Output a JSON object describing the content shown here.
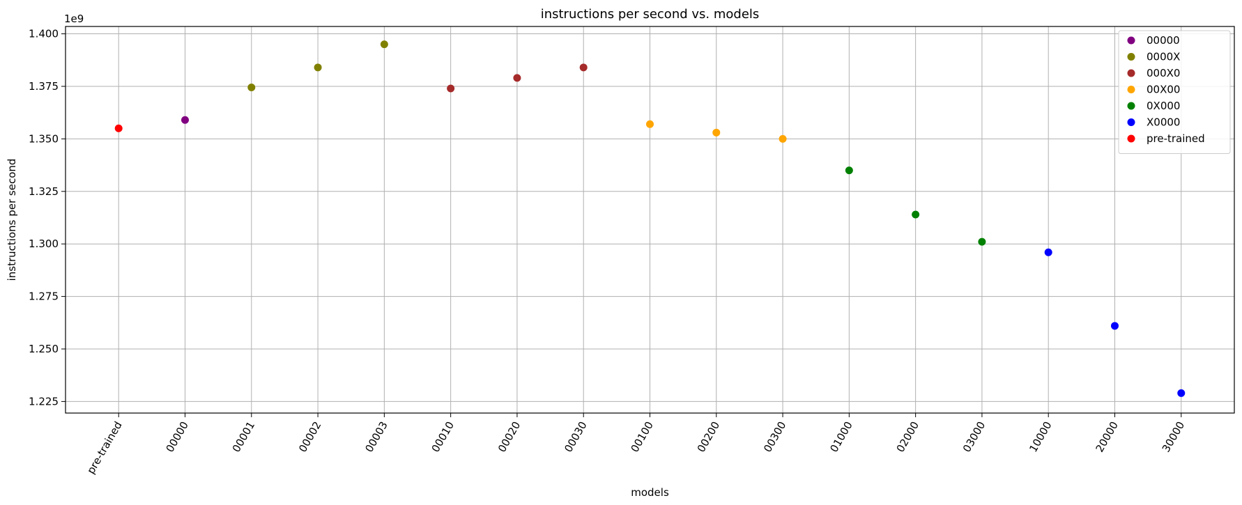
{
  "chart_data": {
    "type": "scatter",
    "title": "instructions per second vs. models",
    "xlabel": "models",
    "ylabel": "instructions per second",
    "y_offset_label": "1e9",
    "categories": [
      "pre-trained",
      "00000",
      "00001",
      "00002",
      "00003",
      "00010",
      "00020",
      "00030",
      "00100",
      "00200",
      "00300",
      "01000",
      "02000",
      "03000",
      "10000",
      "20000",
      "30000"
    ],
    "ylim": [
      1.2195,
      1.4035
    ],
    "yticks": [
      1.225,
      1.25,
      1.275,
      1.3,
      1.325,
      1.35,
      1.375,
      1.4
    ],
    "ytick_labels": [
      "1.225",
      "1.250",
      "1.275",
      "1.300",
      "1.325",
      "1.350",
      "1.375",
      "1.400"
    ],
    "grid": true,
    "legend_position": "top-right",
    "series": [
      {
        "name": "00000",
        "color": "#800080",
        "points": [
          {
            "x": "00000",
            "y": 1.359
          }
        ]
      },
      {
        "name": "0000X",
        "color": "#808000",
        "points": [
          {
            "x": "00001",
            "y": 1.3745
          },
          {
            "x": "00002",
            "y": 1.384
          },
          {
            "x": "00003",
            "y": 1.395
          }
        ]
      },
      {
        "name": "000X0",
        "color": "#a52a2a",
        "points": [
          {
            "x": "00010",
            "y": 1.374
          },
          {
            "x": "00020",
            "y": 1.379
          },
          {
            "x": "00030",
            "y": 1.384
          }
        ]
      },
      {
        "name": "00X00",
        "color": "#ffa500",
        "points": [
          {
            "x": "00100",
            "y": 1.357
          },
          {
            "x": "00200",
            "y": 1.353
          },
          {
            "x": "00300",
            "y": 1.35
          }
        ]
      },
      {
        "name": "0X000",
        "color": "#008000",
        "points": [
          {
            "x": "01000",
            "y": 1.335
          },
          {
            "x": "02000",
            "y": 1.314
          },
          {
            "x": "03000",
            "y": 1.301
          }
        ]
      },
      {
        "name": "X0000",
        "color": "#0000ff",
        "points": [
          {
            "x": "10000",
            "y": 1.296
          },
          {
            "x": "20000",
            "y": 1.261
          },
          {
            "x": "30000",
            "y": 1.229
          }
        ]
      },
      {
        "name": "pre-trained",
        "color": "#ff0000",
        "points": [
          {
            "x": "pre-trained",
            "y": 1.355
          }
        ]
      }
    ]
  }
}
